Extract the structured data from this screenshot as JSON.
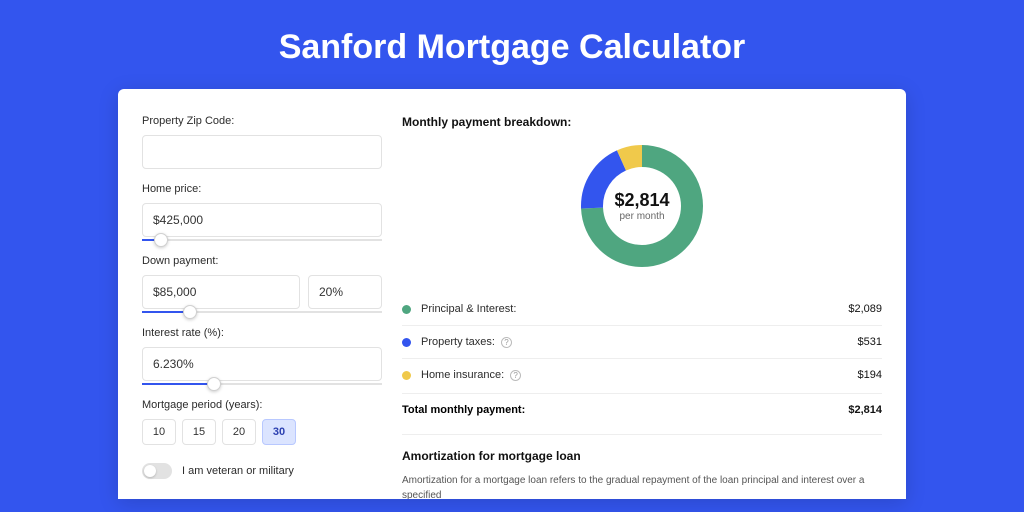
{
  "page": {
    "title": "Sanford Mortgage Calculator",
    "background_color": "#3355ee"
  },
  "form": {
    "zip": {
      "label": "Property Zip Code:",
      "value": ""
    },
    "home_price": {
      "label": "Home price:",
      "value": "$425,000",
      "slider_percent": 8
    },
    "down_payment": {
      "label": "Down payment:",
      "amount": "$85,000",
      "percent": "20%",
      "slider_percent": 20
    },
    "interest": {
      "label": "Interest rate (%):",
      "value": "6.230%",
      "slider_percent": 30
    },
    "period": {
      "label": "Mortgage period (years):",
      "options": [
        "10",
        "15",
        "20",
        "30"
      ],
      "selected": "30"
    },
    "veteran": {
      "label": "I am veteran or military",
      "checked": false
    }
  },
  "breakdown": {
    "title": "Monthly payment breakdown:",
    "center_amount": "$2,814",
    "center_sub": "per month",
    "donut": {
      "radius": 50,
      "stroke_width": 22,
      "slices": [
        {
          "key": "principal_interest",
          "fraction": 0.742,
          "color": "#4fa680"
        },
        {
          "key": "property_taxes",
          "fraction": 0.189,
          "color": "#3355ee"
        },
        {
          "key": "home_insurance",
          "fraction": 0.069,
          "color": "#f0c94b"
        }
      ]
    },
    "items": [
      {
        "label": "Principal & Interest:",
        "value": "$2,089",
        "color": "#4fa680",
        "info": false
      },
      {
        "label": "Property taxes:",
        "value": "$531",
        "color": "#3355ee",
        "info": true
      },
      {
        "label": "Home insurance:",
        "value": "$194",
        "color": "#f0c94b",
        "info": true
      }
    ],
    "total": {
      "label": "Total monthly payment:",
      "value": "$2,814"
    }
  },
  "amortization": {
    "title": "Amortization for mortgage loan",
    "text": "Amortization for a mortgage loan refers to the gradual repayment of the loan principal and interest over a specified"
  }
}
